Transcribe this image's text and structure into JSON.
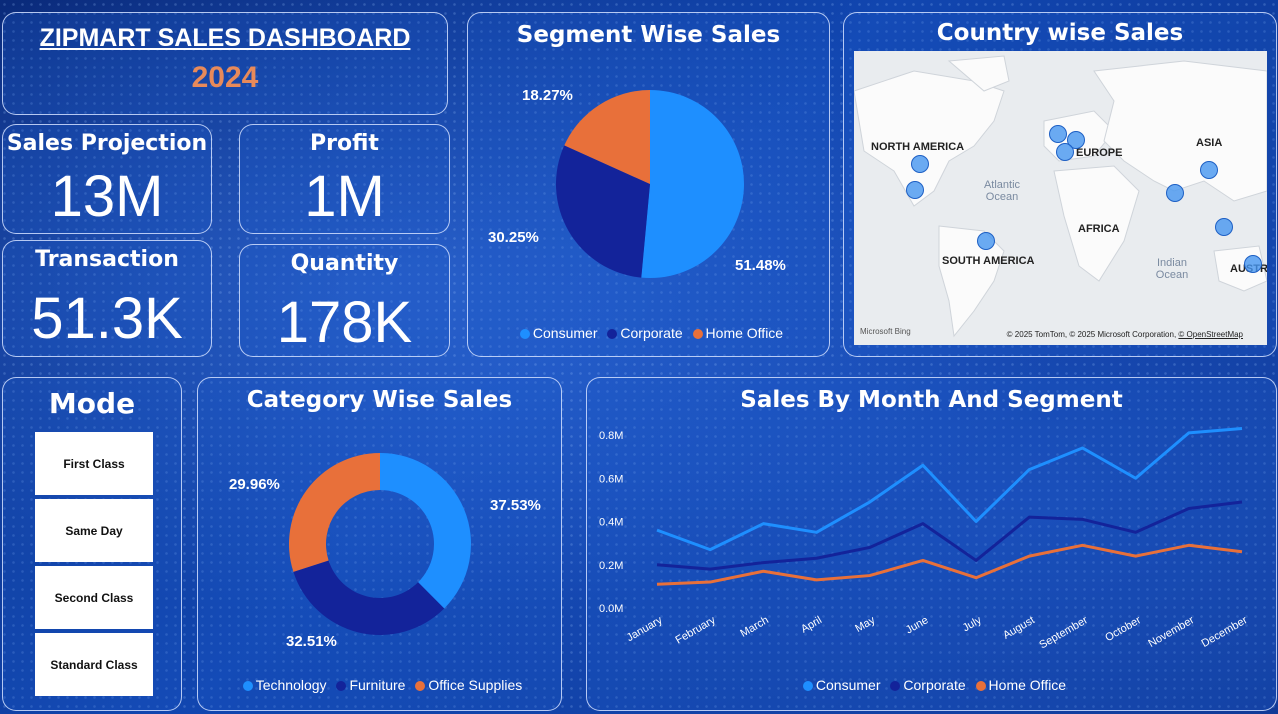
{
  "header": {
    "title": "ZIPMART SALES DASHBOARD",
    "year": "2024"
  },
  "kpis": {
    "sales_projection": {
      "label": "Sales Projection",
      "value": "13M"
    },
    "profit": {
      "label": "Profit",
      "value": "1M"
    },
    "transaction": {
      "label": "Transaction",
      "value": "51.3K"
    },
    "quantity": {
      "label": "Quantity",
      "value": "178K"
    }
  },
  "mode": {
    "title": "Mode",
    "options": [
      "First Class",
      "Same Day",
      "Second Class",
      "Standard Class"
    ]
  },
  "map": {
    "title": "Country wise Sales",
    "labels": [
      "NORTH AMERICA",
      "EUROPE",
      "ASIA",
      "AFRICA",
      "SOUTH AMERICA",
      "AUSTR"
    ],
    "oceans": {
      "atlantic": "Atlantic\nOcean",
      "indian": "Indian\nOcean"
    },
    "attribution": "© 2025 TomTom, © 2025 Microsoft Corporation,",
    "osm_link": "© OpenStreetMap",
    "bing_logo": "Microsoft Bing"
  },
  "colors": {
    "consumer": "#1e8fff",
    "corporate": "#13239a",
    "home_office": "#e8703a"
  },
  "chart_data": [
    {
      "type": "pie",
      "title": "Segment Wise Sales",
      "categories": [
        "Consumer",
        "Corporate",
        "Home Office"
      ],
      "values": [
        51.48,
        30.25,
        18.27
      ],
      "labels": [
        "51.48%",
        "30.25%",
        "18.27%"
      ],
      "colors": [
        "#1e8fff",
        "#13239a",
        "#e8703a"
      ],
      "legend": "bottom"
    },
    {
      "type": "pie",
      "subtype": "donut",
      "title": "Category Wise Sales",
      "categories": [
        "Technology",
        "Furniture",
        "Office Supplies"
      ],
      "values": [
        37.53,
        32.51,
        29.96
      ],
      "labels": [
        "37.53%",
        "32.51%",
        "29.96%"
      ],
      "colors": [
        "#1e8fff",
        "#13239a",
        "#e8703a"
      ],
      "legend": "bottom"
    },
    {
      "type": "line",
      "title": "Sales By Month And Segment",
      "x": [
        "January",
        "February",
        "March",
        "April",
        "May",
        "June",
        "July",
        "August",
        "September",
        "October",
        "November",
        "December"
      ],
      "ylim": [
        0,
        0.8
      ],
      "yticks": [
        "0.0M",
        "0.2M",
        "0.4M",
        "0.6M",
        "0.8M"
      ],
      "series": [
        {
          "name": "Consumer",
          "color": "#1e8fff",
          "values": [
            0.36,
            0.27,
            0.39,
            0.35,
            0.49,
            0.66,
            0.4,
            0.64,
            0.74,
            0.6,
            0.81,
            0.83
          ]
        },
        {
          "name": "Corporate",
          "color": "#13239a",
          "values": [
            0.2,
            0.18,
            0.21,
            0.23,
            0.28,
            0.39,
            0.22,
            0.42,
            0.41,
            0.35,
            0.46,
            0.49
          ]
        },
        {
          "name": "Home Office",
          "color": "#e8703a",
          "values": [
            0.11,
            0.12,
            0.17,
            0.13,
            0.15,
            0.22,
            0.14,
            0.24,
            0.29,
            0.24,
            0.29,
            0.26
          ]
        }
      ],
      "legend": "bottom"
    }
  ]
}
